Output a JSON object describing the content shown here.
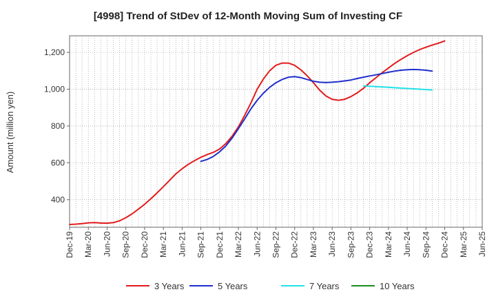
{
  "chart_data": {
    "type": "line",
    "title": "[4998]  Trend of StDev of 12-Month Moving Sum of Investing CF",
    "xlabel": "",
    "ylabel": "Amount (million yen)",
    "ylim": [
      250,
      1290
    ],
    "grid": true,
    "legend_position": "bottom",
    "x_ticks": [
      "Dec-19",
      "Mar-20",
      "Jun-20",
      "Sep-20",
      "Dec-20",
      "Mar-21",
      "Jun-21",
      "Sep-21",
      "Dec-21",
      "Mar-22",
      "Jun-22",
      "Sep-22",
      "Dec-22",
      "Mar-23",
      "Jun-23",
      "Sep-23",
      "Dec-23",
      "Mar-24",
      "Jun-24",
      "Sep-24",
      "Dec-24",
      "Mar-25",
      "Jun-25"
    ],
    "y_ticks": [
      400,
      600,
      800,
      1000,
      1200
    ],
    "y_tick_labels": [
      "400",
      "600",
      "800",
      "1,000",
      "1,200"
    ],
    "series": [
      {
        "name": "3 Years",
        "color": "#e31a1c",
        "start_index": 0,
        "values": [
          265,
          267,
          270,
          274,
          275,
          273,
          272,
          275,
          285,
          302,
          323,
          348,
          375,
          405,
          437,
          470,
          505,
          540,
          568,
          592,
          612,
          630,
          645,
          657,
          675,
          705,
          745,
          795,
          857,
          925,
          1000,
          1055,
          1100,
          1130,
          1142,
          1142,
          1130,
          1105,
          1073,
          1035,
          995,
          963,
          945,
          940,
          945,
          960,
          980,
          1005,
          1035,
          1062,
          1090,
          1115,
          1140,
          1162,
          1182,
          1200,
          1215,
          1228,
          1240,
          1250,
          1262
        ]
      },
      {
        "name": "5 Years",
        "color": "#1f2dcc",
        "start_index": 21,
        "values": [
          608,
          618,
          635,
          660,
          692,
          735,
          785,
          838,
          893,
          940,
          978,
          1010,
          1035,
          1053,
          1065,
          1068,
          1063,
          1053,
          1043,
          1038,
          1036,
          1038,
          1041,
          1045,
          1050,
          1058,
          1065,
          1072,
          1078,
          1085,
          1092,
          1098,
          1103,
          1106,
          1107,
          1106,
          1103,
          1098
        ]
      },
      {
        "name": "7 Years",
        "color": "#22e0e6",
        "start_index": 47,
        "values": [
          1018,
          1016,
          1014,
          1012,
          1010,
          1008,
          1006,
          1004,
          1002,
          1000,
          998,
          996
        ]
      },
      {
        "name": "10 Years",
        "color": "#1b8a1b",
        "start_index": 0,
        "values": []
      }
    ]
  }
}
